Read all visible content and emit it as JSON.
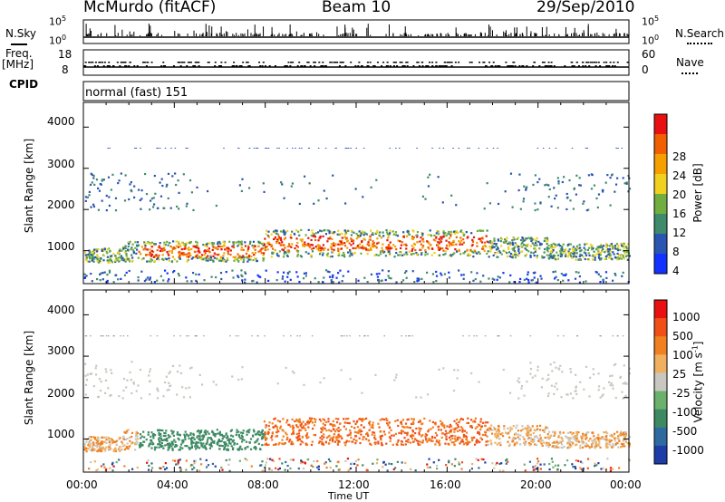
{
  "header": {
    "station": "McMurdo (fitACF)",
    "beam": "Beam 10",
    "date": "29/Sep/2010"
  },
  "noise_panel": {
    "left_label": "N.Sky",
    "right_label": "N.Search",
    "left_ticks": [
      "10^5",
      "10^0"
    ],
    "right_ticks": [
      "10^5",
      "10^0"
    ]
  },
  "freq_panel": {
    "left_label": "Freq.",
    "left_unit": "[MHz]",
    "right_label": "Nave",
    "left_ticks": [
      "18",
      "8"
    ],
    "right_ticks": [
      "60",
      "0"
    ]
  },
  "cpid": {
    "label": "CPID",
    "value": "normal (fast) 151"
  },
  "chart_data": [
    {
      "type": "heatmap",
      "ylabel": "Slant Range [km]",
      "ylim": [
        200,
        4600
      ],
      "yticks": [
        "4000",
        "3000",
        "2000",
        "1000"
      ],
      "colorbar_label": "Power [dB]",
      "colorbar_ticks": [
        "28",
        "24",
        "20",
        "16",
        "12",
        "8",
        "4"
      ],
      "colors": [
        "#1432ff",
        "#2a55b0",
        "#3f8a6a",
        "#6fae3f",
        "#f0d020",
        "#f5a000",
        "#f06000",
        "#e81010"
      ]
    },
    {
      "type": "heatmap",
      "ylabel": "Slant Range [km]",
      "ylim": [
        200,
        4600
      ],
      "yticks": [
        "4000",
        "3000",
        "2000",
        "1000"
      ],
      "colorbar_label": "Velocity [m s^-1]",
      "colorbar_ticks": [
        "1000",
        "500",
        "100",
        "25",
        "-25",
        "-100",
        "-500",
        "-1000"
      ],
      "colors": [
        "#1e3ca8",
        "#2e6aa0",
        "#3d8a62",
        "#6bb06b",
        "#c8c8c0",
        "#f0b060",
        "#f08020",
        "#f05018",
        "#e81010"
      ]
    }
  ],
  "x_axis": {
    "ticks": [
      "00:00",
      "04:00",
      "08:00",
      "12:00",
      "16:00",
      "20:00",
      "00:00"
    ],
    "label": "Time UT"
  }
}
